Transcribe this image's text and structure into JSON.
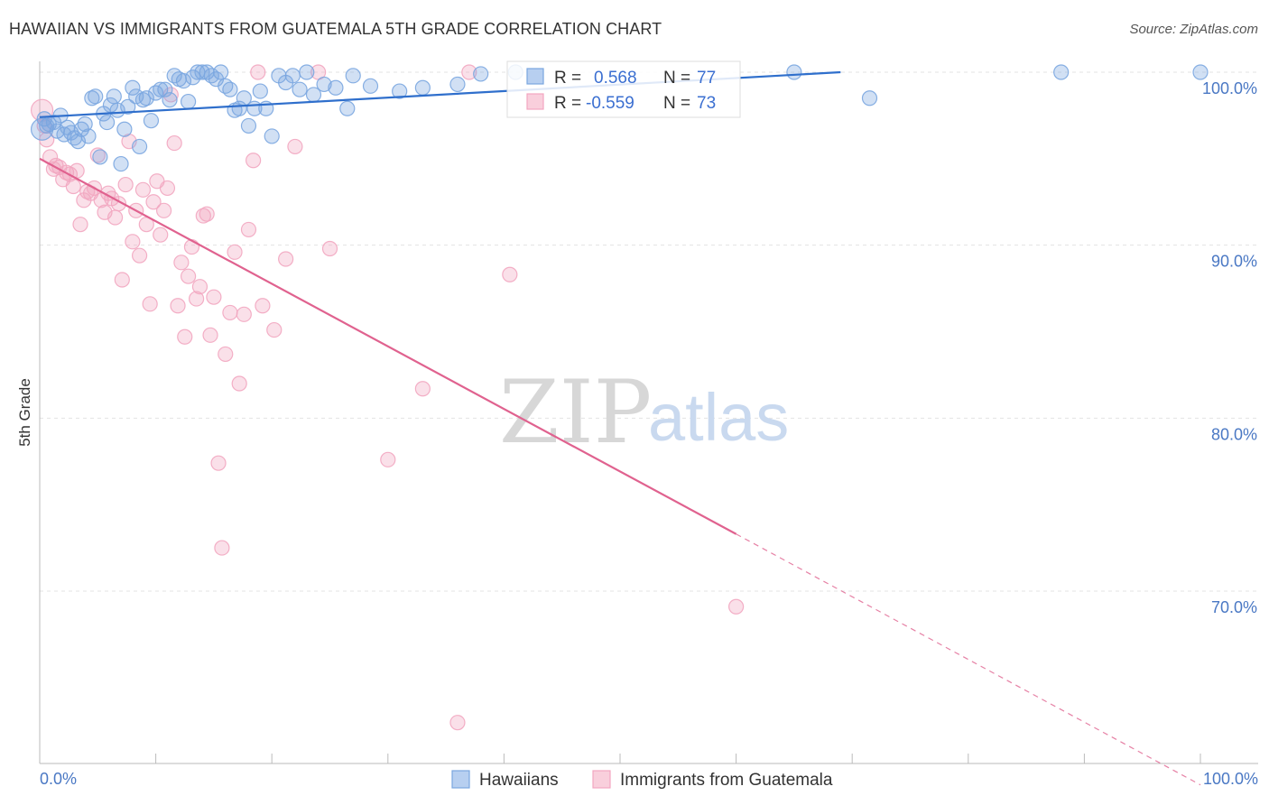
{
  "title": "HAWAIIAN VS IMMIGRANTS FROM GUATEMALA 5TH GRADE CORRELATION CHART",
  "source": "Source: ZipAtlas.com",
  "watermark": {
    "zip": "ZIP",
    "atlas": "atlas"
  },
  "legend_box": {
    "rows": [
      {
        "r_label": "R =",
        "r_value": "0.568",
        "n_label": "N =",
        "n_value": "77"
      },
      {
        "r_label": "R =",
        "r_value": "-0.559",
        "n_label": "N =",
        "n_value": "73"
      }
    ]
  },
  "bottom_legend": [
    "Hawaiians",
    "Immigrants from Guatemala"
  ],
  "colors": {
    "hawaiians": "#7aa6e0",
    "hawaiians_line": "#2f6fcc",
    "guatemala": "#f2a6c0",
    "guatemala_line": "#e0628f",
    "tick_text": "#4a78c4",
    "grid": "#e3e3e3"
  },
  "chart_data": {
    "type": "scatter",
    "xlabel": "",
    "ylabel": "5th Grade",
    "xlim": [
      0,
      100
    ],
    "ylim": [
      61,
      100.8
    ],
    "x_tick_labels": [
      "0.0%",
      "100.0%"
    ],
    "y_ticks": [
      70,
      80,
      90,
      100
    ],
    "y_tick_labels": [
      "70.0%",
      "80.0%",
      "90.0%",
      "100.0%"
    ],
    "grid": true,
    "series": [
      {
        "name": "Hawaiians",
        "r": 0.568,
        "n": 77,
        "trend": {
          "x": [
            0,
            69
          ],
          "y": [
            97.4,
            100.0
          ],
          "dashed_to": null
        },
        "points": [
          [
            0.2,
            96.7
          ],
          [
            0.4,
            97.3
          ],
          [
            0.6,
            96.9
          ],
          [
            0.8,
            97.0
          ],
          [
            1.2,
            97.1
          ],
          [
            1.5,
            96.6
          ],
          [
            1.8,
            97.5
          ],
          [
            2.1,
            96.4
          ],
          [
            2.4,
            96.8
          ],
          [
            2.7,
            96.5
          ],
          [
            3.0,
            96.2
          ],
          [
            3.3,
            96.0
          ],
          [
            3.6,
            96.7
          ],
          [
            3.9,
            97.0
          ],
          [
            4.2,
            96.3
          ],
          [
            4.5,
            98.5
          ],
          [
            4.8,
            98.6
          ],
          [
            5.2,
            95.1
          ],
          [
            5.5,
            97.6
          ],
          [
            5.8,
            97.1
          ],
          [
            6.1,
            98.1
          ],
          [
            6.4,
            98.6
          ],
          [
            6.7,
            97.8
          ],
          [
            7.0,
            94.7
          ],
          [
            7.3,
            96.7
          ],
          [
            7.6,
            98.0
          ],
          [
            8.0,
            99.1
          ],
          [
            8.3,
            98.6
          ],
          [
            8.6,
            95.7
          ],
          [
            8.9,
            98.4
          ],
          [
            9.2,
            98.5
          ],
          [
            9.6,
            97.2
          ],
          [
            10.0,
            98.8
          ],
          [
            10.4,
            99.0
          ],
          [
            10.8,
            99.0
          ],
          [
            11.2,
            98.4
          ],
          [
            11.6,
            99.8
          ],
          [
            12.0,
            99.6
          ],
          [
            12.4,
            99.5
          ],
          [
            12.8,
            98.3
          ],
          [
            13.2,
            99.7
          ],
          [
            13.6,
            100.0
          ],
          [
            14.0,
            100.0
          ],
          [
            14.4,
            100.0
          ],
          [
            14.8,
            99.8
          ],
          [
            15.2,
            99.6
          ],
          [
            15.6,
            100.0
          ],
          [
            16.0,
            99.2
          ],
          [
            16.4,
            99.0
          ],
          [
            16.8,
            97.8
          ],
          [
            17.2,
            97.9
          ],
          [
            17.6,
            98.5
          ],
          [
            18.0,
            96.9
          ],
          [
            18.5,
            97.9
          ],
          [
            19.0,
            98.9
          ],
          [
            19.5,
            97.9
          ],
          [
            20.0,
            96.3
          ],
          [
            20.6,
            99.8
          ],
          [
            21.2,
            99.4
          ],
          [
            21.8,
            99.8
          ],
          [
            22.4,
            99.0
          ],
          [
            23.0,
            100.0
          ],
          [
            23.6,
            98.7
          ],
          [
            24.5,
            99.3
          ],
          [
            25.5,
            99.1
          ],
          [
            26.5,
            97.9
          ],
          [
            27.0,
            99.8
          ],
          [
            28.5,
            99.2
          ],
          [
            31.0,
            98.9
          ],
          [
            33.0,
            99.1
          ],
          [
            36.0,
            99.3
          ],
          [
            38.0,
            99.9
          ],
          [
            41.0,
            100.0
          ],
          [
            65.0,
            100.0
          ],
          [
            71.5,
            98.5
          ],
          [
            88.0,
            100.0
          ],
          [
            100.0,
            100.0
          ]
        ]
      },
      {
        "name": "Immigrants from Guatemala",
        "r": -0.559,
        "n": 73,
        "trend": {
          "x": [
            0,
            60
          ],
          "y": [
            95.0,
            73.3
          ],
          "dashed_to": [
            100,
            58.8
          ]
        },
        "points": [
          [
            0.2,
            97.8
          ],
          [
            0.4,
            96.9
          ],
          [
            0.6,
            96.1
          ],
          [
            0.9,
            95.1
          ],
          [
            1.2,
            94.4
          ],
          [
            1.4,
            94.6
          ],
          [
            1.7,
            94.5
          ],
          [
            2.0,
            93.8
          ],
          [
            2.3,
            94.2
          ],
          [
            2.6,
            94.1
          ],
          [
            2.9,
            93.4
          ],
          [
            3.2,
            94.3
          ],
          [
            3.5,
            91.2
          ],
          [
            3.8,
            92.6
          ],
          [
            4.1,
            93.1
          ],
          [
            4.4,
            93.0
          ],
          [
            4.7,
            93.3
          ],
          [
            5.0,
            95.2
          ],
          [
            5.3,
            92.6
          ],
          [
            5.6,
            91.9
          ],
          [
            5.9,
            93.0
          ],
          [
            6.2,
            92.7
          ],
          [
            6.5,
            91.6
          ],
          [
            6.8,
            92.4
          ],
          [
            7.1,
            88.0
          ],
          [
            7.4,
            93.5
          ],
          [
            7.7,
            96.0
          ],
          [
            8.0,
            90.2
          ],
          [
            8.3,
            92.0
          ],
          [
            8.6,
            89.4
          ],
          [
            8.9,
            93.2
          ],
          [
            9.2,
            91.2
          ],
          [
            9.5,
            86.6
          ],
          [
            9.8,
            92.5
          ],
          [
            10.1,
            93.7
          ],
          [
            10.4,
            90.6
          ],
          [
            10.7,
            92.0
          ],
          [
            11.0,
            93.3
          ],
          [
            11.3,
            98.7
          ],
          [
            11.6,
            95.9
          ],
          [
            11.9,
            86.5
          ],
          [
            12.2,
            89.0
          ],
          [
            12.5,
            84.7
          ],
          [
            12.8,
            88.2
          ],
          [
            13.1,
            89.9
          ],
          [
            13.5,
            86.9
          ],
          [
            13.8,
            87.6
          ],
          [
            14.1,
            91.7
          ],
          [
            14.4,
            91.8
          ],
          [
            14.7,
            84.8
          ],
          [
            15.0,
            87.0
          ],
          [
            15.4,
            77.4
          ],
          [
            15.7,
            72.5
          ],
          [
            16.0,
            83.7
          ],
          [
            16.4,
            86.1
          ],
          [
            16.8,
            89.6
          ],
          [
            17.2,
            82.0
          ],
          [
            17.6,
            86.0
          ],
          [
            18.0,
            90.9
          ],
          [
            18.4,
            94.9
          ],
          [
            18.8,
            100.0
          ],
          [
            19.2,
            86.5
          ],
          [
            20.2,
            85.1
          ],
          [
            21.2,
            89.2
          ],
          [
            22.0,
            95.7
          ],
          [
            24.0,
            100.0
          ],
          [
            25.0,
            89.8
          ],
          [
            30.0,
            77.6
          ],
          [
            33.0,
            81.7
          ],
          [
            37.0,
            100.0
          ],
          [
            36.0,
            62.4
          ],
          [
            40.5,
            88.3
          ],
          [
            60.0,
            69.1
          ]
        ]
      }
    ]
  }
}
